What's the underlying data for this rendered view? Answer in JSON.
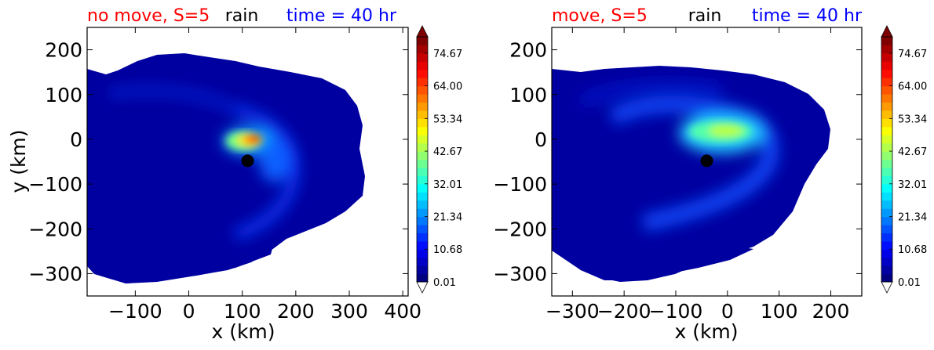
{
  "chart_data": [
    {
      "type": "heatmap",
      "title_left": "no move, S=5",
      "title_center": "rain",
      "title_right": "time = 40 hr",
      "title_left_color": "#ff0000",
      "title_center_color": "#000000",
      "title_right_color": "#0000ff",
      "xlabel": "x (km)",
      "ylabel": "y (km)",
      "xlim": [
        -190,
        410
      ],
      "ylim": [
        -350,
        250
      ],
      "xticks": [
        -100,
        0,
        100,
        200,
        300,
        400
      ],
      "xtick_labels": [
        "−100",
        "0",
        "100",
        "200",
        "300",
        "400"
      ],
      "yticks": [
        200,
        100,
        0,
        -100,
        -200,
        -300
      ],
      "ytick_labels": [
        "200",
        "100",
        "0",
        "−100",
        "−200",
        "−300"
      ],
      "center_marker": {
        "x": 110,
        "y": -48
      },
      "colorbar": {
        "min": 0.01,
        "max": 80,
        "extend": "both",
        "ticks": [
          0.01,
          10.68,
          21.34,
          32.01,
          42.67,
          53.34,
          64.0,
          74.67
        ],
        "tick_labels": [
          "0.01",
          "10.68",
          "21.34",
          "32.01",
          "42.67",
          "53.34",
          "64.00",
          "74.67"
        ],
        "colormap": "jet"
      }
    },
    {
      "type": "heatmap",
      "title_left": "move, S=5",
      "title_center": "rain",
      "title_right": "time = 40 hr",
      "title_left_color": "#ff0000",
      "title_center_color": "#000000",
      "title_right_color": "#0000ff",
      "xlabel": "x (km)",
      "ylabel": "",
      "xlim": [
        -340,
        260
      ],
      "ylim": [
        -350,
        250
      ],
      "xticks": [
        -300,
        -200,
        -100,
        0,
        100,
        200
      ],
      "xtick_labels": [
        "−300",
        "−200",
        "−100",
        "0",
        "100",
        "200"
      ],
      "yticks": [
        200,
        100,
        0,
        -100,
        -200,
        -300
      ],
      "ytick_labels": [
        "200",
        "100",
        "0",
        "−100",
        "−200",
        "−300"
      ],
      "center_marker": {
        "x": -40,
        "y": -48
      },
      "colorbar": {
        "min": 0.01,
        "max": 80,
        "extend": "both",
        "ticks": [
          0.01,
          10.68,
          21.34,
          32.01,
          42.67,
          53.34,
          64.0,
          74.67
        ],
        "tick_labels": [
          "0.01",
          "10.68",
          "21.34",
          "32.01",
          "42.67",
          "53.34",
          "64.00",
          "74.67"
        ],
        "colormap": "jet"
      }
    }
  ]
}
